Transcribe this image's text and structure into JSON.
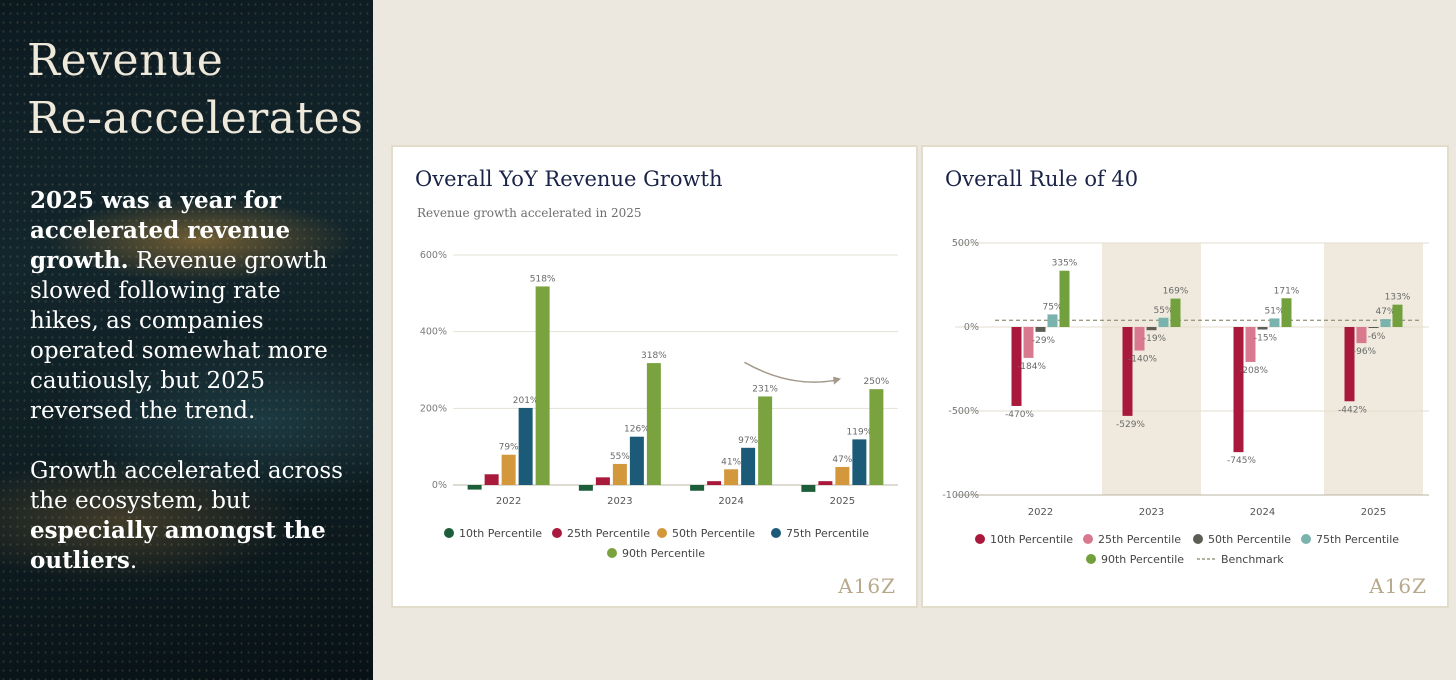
{
  "left_panel": {
    "headline_line1": "Revenue",
    "headline_line2": "Re-accelerates",
    "para1_bold": "2025 was a year for accelerated revenue growth.",
    "para1_rest": " Revenue growth slowed following rate hikes, as companies operated somewhat more cautiously, but 2025 reversed the trend.",
    "para2_start": "Growth accelerated across the ecosystem, but ",
    "para2_bold": "especially amongst the outliers",
    "para2_end": "."
  },
  "logo_text": "A16Z",
  "colors": {
    "p10_left": "#1d5e3a",
    "p25_left": "#a8193b",
    "p50_left": "#d4983c",
    "p75_left": "#1b5b78",
    "p90_left": "#7aa23e",
    "p10_right": "#a8193b",
    "p25_right": "#d9798f",
    "p50_right": "#5d5d55",
    "p75_right": "#7ab3ae",
    "p90_right": "#72a03c",
    "benchmark": "#9a9a80",
    "shade": "#efeadd"
  },
  "chart_data": [
    {
      "type": "bar",
      "title": "Overall YoY Revenue Growth",
      "subtitle": "Revenue growth accelerated in 2025",
      "categories": [
        "2022",
        "2023",
        "2024",
        "2025"
      ],
      "ylim": [
        0,
        600
      ],
      "yticks": [
        0,
        200,
        400,
        600
      ],
      "ytick_labels": [
        "0%",
        "200%",
        "400%",
        "600%"
      ],
      "series": [
        {
          "name": "10th Percentile",
          "values": [
            -12,
            -15,
            -15,
            -18
          ],
          "labels": [
            "",
            "",
            "",
            ""
          ]
        },
        {
          "name": "25th Percentile",
          "values": [
            28,
            20,
            10,
            10
          ],
          "labels": [
            "",
            "",
            "",
            ""
          ]
        },
        {
          "name": "50th Percentile",
          "values": [
            79,
            55,
            41,
            47
          ],
          "labels": [
            "79%",
            "55%",
            "41%",
            "47%"
          ]
        },
        {
          "name": "75th Percentile",
          "values": [
            201,
            126,
            97,
            119
          ],
          "labels": [
            "201%",
            "126%",
            "97%",
            "119%"
          ]
        },
        {
          "name": "90th Percentile",
          "values": [
            518,
            318,
            231,
            250
          ],
          "labels": [
            "518%",
            "318%",
            "231%",
            "250%"
          ]
        }
      ],
      "annotation": "arrow from 2024 to 2025 indicating acceleration"
    },
    {
      "type": "bar",
      "title": "Overall Rule of 40",
      "categories": [
        "2022",
        "2023",
        "2024",
        "2025"
      ],
      "ylim": [
        -1000,
        500
      ],
      "yticks": [
        500,
        0,
        -500,
        -1000
      ],
      "ytick_labels": [
        "500%",
        "0%",
        "-500%",
        "-1000%"
      ],
      "shaded_categories": [
        "2023",
        "2025"
      ],
      "benchmark": {
        "name": "Benchmark",
        "value": 40
      },
      "series": [
        {
          "name": "10th Percentile",
          "values": [
            -470,
            -529,
            -745,
            -442
          ],
          "labels": [
            "-470%",
            "-529%",
            "-745%",
            "-442%"
          ]
        },
        {
          "name": "25th Percentile",
          "values": [
            -184,
            -140,
            -208,
            -96
          ],
          "labels": [
            "-184%",
            "-140%",
            "-208%",
            "-96%"
          ]
        },
        {
          "name": "50th Percentile",
          "values": [
            -29,
            -19,
            -15,
            -6
          ],
          "labels": [
            "-29%",
            "-19%",
            "-15%",
            "-6%"
          ]
        },
        {
          "name": "75th Percentile",
          "values": [
            75,
            55,
            51,
            47
          ],
          "labels": [
            "75%",
            "55%",
            "51%",
            "47%"
          ]
        },
        {
          "name": "90th Percentile",
          "values": [
            335,
            169,
            171,
            133
          ],
          "labels": [
            "335%",
            "169%",
            "171%",
            "133%"
          ]
        }
      ]
    }
  ]
}
